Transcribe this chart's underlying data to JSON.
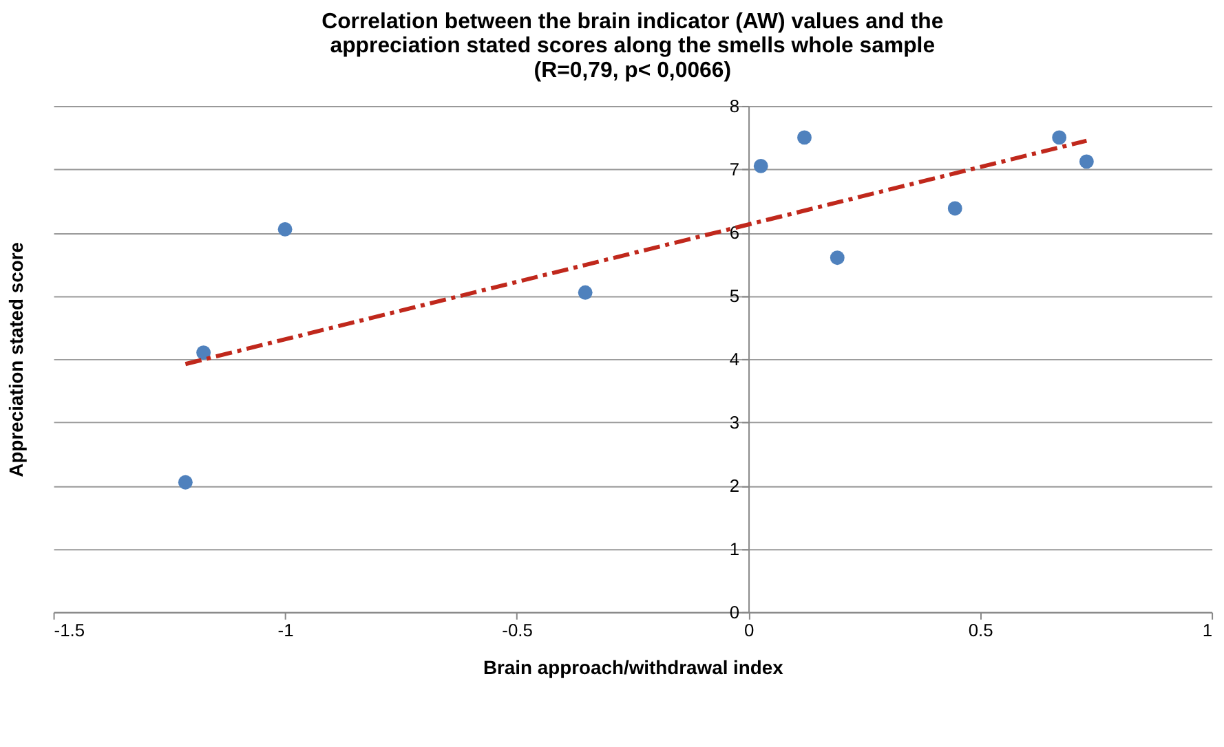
{
  "chart_data": {
    "type": "scatter",
    "title": [
      "Correlation between the brain indicator (AW) values and the",
      "appreciation stated scores along the smells whole sample",
      "(R=0,79, p< 0,0066)"
    ],
    "xlabel": "Brain approach/withdrawal index",
    "ylabel": "Appreciation stated score",
    "x": [
      -1.215,
      -1.176,
      -1.0,
      -0.352,
      0.027,
      0.121,
      0.192,
      0.446,
      0.671,
      0.73
    ],
    "series": [
      {
        "color": "#4f81bd",
        "marker": "circle",
        "values": [
          2.05,
          4.1,
          6.05,
          5.05,
          7.05,
          7.5,
          5.6,
          6.38,
          7.5,
          7.12
        ]
      },
      {
        "type": "line",
        "color": "#c0281c",
        "line_style": "dashed",
        "x": [
          -1.215,
          0.73
        ],
        "values": [
          3.92,
          7.45
        ]
      }
    ],
    "xlim": [
      -1.5,
      1
    ],
    "xticks": [
      -1.5,
      -1,
      -0.5,
      0,
      0.5,
      1
    ],
    "ylim": [
      0,
      8
    ],
    "yticks": [
      0,
      1,
      2,
      3,
      4,
      5,
      6,
      7,
      8
    ],
    "grid": "y"
  }
}
